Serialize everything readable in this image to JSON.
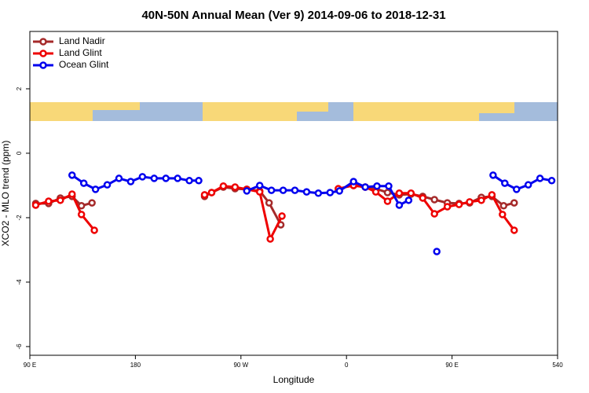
{
  "chart_data": {
    "type": "line",
    "title": "40N-50N Annual Mean (Ver 9)   2014-09-06 to 2018-12-31",
    "x_label": "Longitude",
    "y_label": "XCO2 - MLO trend (ppm)",
    "xlim": [
      90,
      540
    ],
    "ylim": [
      -6.27,
      3.78
    ],
    "xticks": [
      {
        "value": 90,
        "label": "90 E"
      },
      180,
      {
        "value": 270,
        "label": "90 W"
      },
      {
        "value": 360,
        "label": "0"
      },
      {
        "value": 450,
        "label": "90 E"
      },
      540
    ],
    "yticks": [
      -6,
      -4,
      -2,
      0,
      2
    ],
    "legend": "top-left",
    "series": [
      {
        "name": "Land Nadir",
        "color": "#a52a2a",
        "x": [
          95,
          106,
          116,
          126,
          134,
          143,
          null,
          239,
          245,
          255,
          265,
          275,
          286,
          294,
          304,
          null,
          366,
          376,
          385,
          395,
          405,
          415,
          425,
          435,
          446,
          456,
          465,
          475,
          484,
          494,
          503
        ],
        "values": [
          -1.56,
          -1.56,
          -1.39,
          -1.34,
          -1.63,
          -1.54,
          null,
          -1.34,
          -1.22,
          -1.05,
          -1.1,
          -1.12,
          -1.17,
          -1.54,
          -2.22,
          null,
          -1.0,
          -1.05,
          -1.1,
          -1.22,
          -1.29,
          -1.27,
          -1.34,
          -1.44,
          -1.54,
          -1.56,
          -1.54,
          -1.37,
          -1.34,
          -1.63,
          -1.54
        ]
      },
      {
        "name": "Land Glint",
        "color": "#ee0000",
        "x": [
          95,
          106,
          116,
          126,
          134,
          145,
          null,
          239,
          245,
          255,
          265,
          275,
          286,
          295,
          305,
          null,
          353,
          366,
          376,
          385,
          395,
          405,
          415,
          425,
          435,
          446,
          456,
          465,
          475,
          484,
          493,
          503
        ],
        "values": [
          -1.61,
          -1.49,
          -1.46,
          -1.27,
          -1.9,
          -2.39,
          null,
          -1.29,
          -1.22,
          -1.02,
          -1.05,
          -1.12,
          -1.2,
          -2.66,
          -1.95,
          null,
          -1.1,
          -1.0,
          -1.05,
          -1.2,
          -1.49,
          -1.24,
          -1.24,
          -1.39,
          -1.88,
          -1.66,
          -1.59,
          -1.51,
          -1.46,
          -1.29,
          -1.9,
          -2.39
        ]
      },
      {
        "name": "Ocean Glint",
        "color": "#0000ee",
        "x": [
          126,
          136,
          146,
          156,
          166,
          176,
          186,
          196,
          206,
          216,
          226,
          234,
          null,
          275,
          286,
          296,
          306,
          316,
          326,
          336,
          346,
          354,
          366,
          376,
          386,
          396,
          405,
          413,
          null,
          437,
          null,
          485,
          495,
          505,
          515,
          525,
          535
        ],
        "values": [
          -0.68,
          -0.93,
          -1.12,
          -0.98,
          -0.78,
          -0.88,
          -0.73,
          -0.78,
          -0.78,
          -0.78,
          -0.85,
          -0.85,
          null,
          -1.17,
          -1.0,
          -1.15,
          -1.15,
          -1.15,
          -1.2,
          -1.24,
          -1.22,
          -1.17,
          -0.88,
          -1.05,
          -1.02,
          -1.02,
          -1.61,
          -1.46,
          null,
          -3.05,
          null,
          -0.68,
          -0.93,
          -1.12,
          -0.98,
          -0.78,
          -0.85
        ]
      }
    ]
  }
}
